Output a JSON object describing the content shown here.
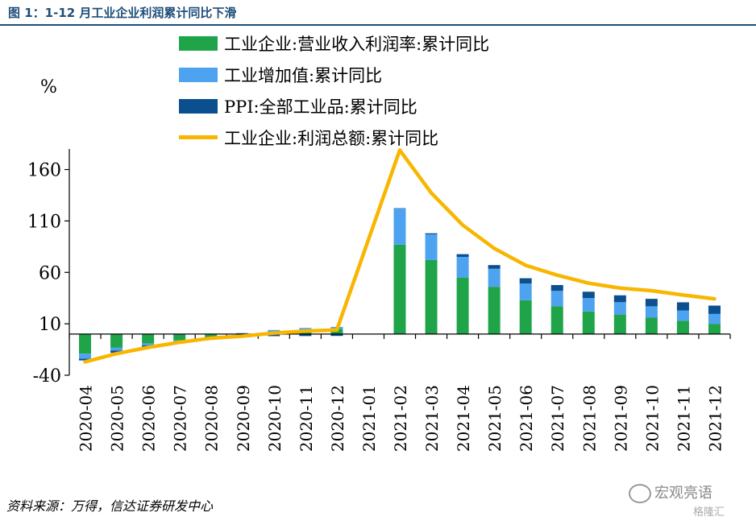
{
  "figure": {
    "title": "图 1：1-12 月工业企业利润累计同比下滑",
    "source": "资料来源：万得，信达证券研发中心",
    "watermark": "宏观亮语",
    "watermark_sub": "格隆汇"
  },
  "legend_items": [
    {
      "label": "工业企业:营业收入利润率:累计同比",
      "color": "#1fa44a",
      "kind": "bar"
    },
    {
      "label": "工业增加值:累计同比",
      "color": "#4da3ef",
      "kind": "bar"
    },
    {
      "label": "PPI:全部工业品:累计同比",
      "color": "#0c4f8f",
      "kind": "bar"
    },
    {
      "label": "工业企业:利润总额:累计同比",
      "color": "#f8b600",
      "kind": "line"
    }
  ],
  "chart_data": {
    "type": "bar",
    "title": "图 1：1-12 月工业企业利润累计同比下滑",
    "ylabel": "%",
    "ylim": [
      -40,
      180
    ],
    "yticks": [
      -40,
      10,
      60,
      110,
      160
    ],
    "stacked": true,
    "categories": [
      "2020-04",
      "2020-05",
      "2020-06",
      "2020-07",
      "2020-08",
      "2020-09",
      "2020-10",
      "2020-11",
      "2020-12",
      "2021-01",
      "2021-02",
      "2021-03",
      "2021-04",
      "2021-05",
      "2021-06",
      "2021-07",
      "2021-08",
      "2021-09",
      "2021-10",
      "2021-11",
      "2021-12"
    ],
    "series": [
      {
        "name": "工业企业:营业收入利润率:累计同比",
        "type": "bar",
        "color": "#1fa44a",
        "values": [
          -19,
          -13,
          -9,
          -6,
          -3,
          -1,
          2,
          4,
          5,
          null,
          87,
          72,
          55,
          46,
          33,
          27,
          22,
          19,
          16,
          13,
          10
        ]
      },
      {
        "name": "工业增加值:累计同比",
        "type": "bar",
        "color": "#4da3ef",
        "values": [
          -5,
          -3,
          -2,
          -1,
          0,
          1,
          2,
          2,
          2,
          null,
          35,
          25,
          20,
          17.5,
          16.2,
          15,
          13,
          12,
          11,
          10,
          9.6
        ]
      },
      {
        "name": "PPI:全部工业品:累计同比",
        "type": "bar",
        "color": "#0c4f8f",
        "values": [
          -1.6,
          -2.2,
          -2.0,
          -2.0,
          -2.0,
          -2.0,
          -2.0,
          -1.9,
          -1.8,
          null,
          0.4,
          1.0,
          2.7,
          3.6,
          5.1,
          5.7,
          6.2,
          6.7,
          7.3,
          7.9,
          8.1
        ]
      },
      {
        "name": "工业企业:利润总额:累计同比",
        "type": "line",
        "color": "#f8b600",
        "values": [
          -27,
          -19,
          -13,
          -8,
          -4,
          -2,
          1,
          3,
          4,
          null,
          178.9,
          137.3,
          106,
          83.4,
          66.9,
          57.3,
          49.5,
          44.7,
          42.2,
          38,
          34.3
        ]
      }
    ]
  }
}
